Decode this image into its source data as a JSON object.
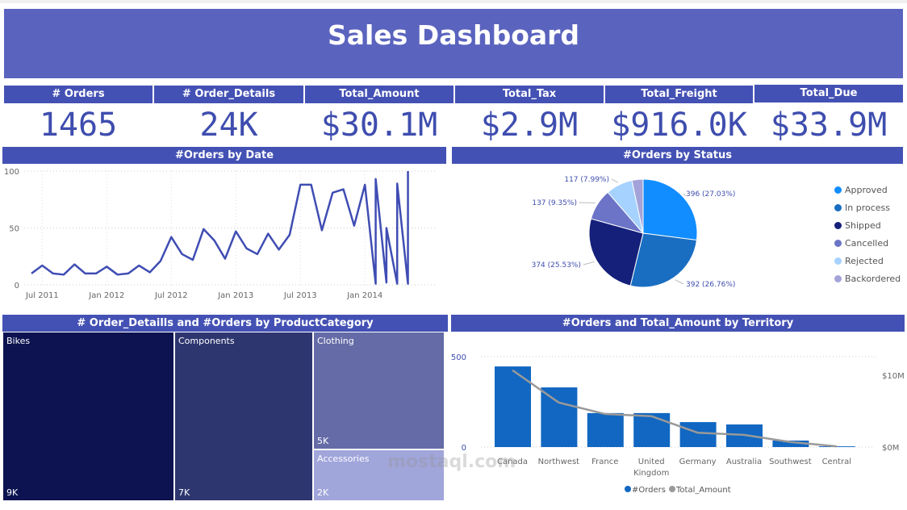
{
  "title": "Sales Dashboard",
  "kpis": [
    {
      "label": "# Orders",
      "value": "1465"
    },
    {
      "label": "# Order_Details",
      "value": "24K"
    },
    {
      "label": "Total_Amount",
      "value": "$30.1M"
    },
    {
      "label": "Total_Tax",
      "value": "$2.9M"
    },
    {
      "label": "Total_Freight",
      "value": "$916.0K"
    },
    {
      "label": "Total_Due",
      "value": "$33.9M"
    }
  ],
  "watermark": "mostaql.com",
  "chart_data": [
    {
      "type": "line",
      "title": "#Orders by Date",
      "color": "#3F4DB3",
      "ylim": [
        0,
        100
      ],
      "yticks": [
        "0",
        "50",
        "100"
      ],
      "xticks": [
        "Jul 2011",
        "Jan 2012",
        "Jul 2012",
        "Jan 2013",
        "Jul 2013",
        "Jan 2014"
      ],
      "grid": true,
      "points": [
        [
          "2011-06",
          10
        ],
        [
          "2011-07",
          17
        ],
        [
          "2011-08",
          10
        ],
        [
          "2011-09",
          9
        ],
        [
          "2011-10",
          18
        ],
        [
          "2011-11",
          10
        ],
        [
          "2011-12",
          10
        ],
        [
          "2012-01",
          16
        ],
        [
          "2012-02",
          9
        ],
        [
          "2012-03",
          10
        ],
        [
          "2012-04",
          17
        ],
        [
          "2012-05",
          11
        ],
        [
          "2012-06",
          21
        ],
        [
          "2012-07",
          42
        ],
        [
          "2012-08",
          27
        ],
        [
          "2012-09",
          22
        ],
        [
          "2012-10",
          49
        ],
        [
          "2012-11",
          39
        ],
        [
          "2012-12",
          23
        ],
        [
          "2013-01",
          47
        ],
        [
          "2013-02",
          32
        ],
        [
          "2013-03",
          27
        ],
        [
          "2013-04",
          45
        ],
        [
          "2013-05",
          31
        ],
        [
          "2013-06",
          44
        ],
        [
          "2013-07",
          88
        ],
        [
          "2013-08",
          88
        ],
        [
          "2013-09",
          48
        ],
        [
          "2013-10",
          81
        ],
        [
          "2013-11",
          84
        ],
        [
          "2013-12",
          52
        ],
        [
          "2014-01",
          88
        ],
        [
          "2014-02",
          1
        ],
        [
          "2014-02",
          93
        ],
        [
          "2014-03",
          2
        ],
        [
          "2014-03",
          50
        ],
        [
          "2014-04",
          1
        ],
        [
          "2014-04",
          89
        ],
        [
          "2014-05",
          1
        ],
        [
          "2014-05",
          100
        ]
      ]
    },
    {
      "type": "pie",
      "title": "#Orders by Status",
      "legend": "right",
      "slices": [
        {
          "name": "Approved",
          "value": 396,
          "label": "396 (27.03%)",
          "color": "#118DFF"
        },
        {
          "name": "In process",
          "value": 392,
          "label": "392 (26.76%)",
          "color": "#1A6EC2"
        },
        {
          "name": "Shipped",
          "value": 374,
          "label": "374 (25.53%)",
          "color": "#14207A"
        },
        {
          "name": "Cancelled",
          "value": 137,
          "label": "137 (9.35%)",
          "color": "#6B74C6"
        },
        {
          "name": "Rejected",
          "value": 117,
          "label": "117 (7.99%)",
          "color": "#A6D2FF"
        },
        {
          "name": "Backordered",
          "value": 49,
          "label": "",
          "color": "#A3A3D9"
        }
      ]
    },
    {
      "type": "treemap",
      "title": "# Order_Detaills and #Orders by ProductCategory",
      "items": [
        {
          "name": "Bikes",
          "label": "9K",
          "color": "#0C1350"
        },
        {
          "name": "Components",
          "label": "7K",
          "color": "#2E3670"
        },
        {
          "name": "Clothing",
          "label": "5K",
          "color": "#646BA6"
        },
        {
          "name": "Accessories",
          "label": "2K",
          "color": "#A0A5DA"
        }
      ]
    },
    {
      "type": "bar+line",
      "title": "#Orders and Total_Amount by Territory",
      "legend": "bottom",
      "categories": [
        "Canada",
        "Northwest",
        "France",
        "United Kingdom",
        "Germany",
        "Australia",
        "Southwest",
        "Central"
      ],
      "series": [
        {
          "name": "#Orders",
          "type": "bar",
          "color": "#1167C1",
          "values": [
            446,
            330,
            188,
            188,
            138,
            125,
            36,
            4
          ]
        },
        {
          "name": "Total_Amount",
          "type": "line",
          "color": "#999999",
          "values": [
            10.7,
            6.2,
            4.6,
            4.3,
            2.0,
            1.7,
            0.7,
            0.1
          ]
        }
      ],
      "ylim": [
        0,
        500
      ],
      "yticks": [
        "0",
        "500"
      ],
      "y2lim_millions": [
        0,
        10
      ],
      "y2ticks": [
        "$0M",
        "$10M"
      ]
    }
  ]
}
